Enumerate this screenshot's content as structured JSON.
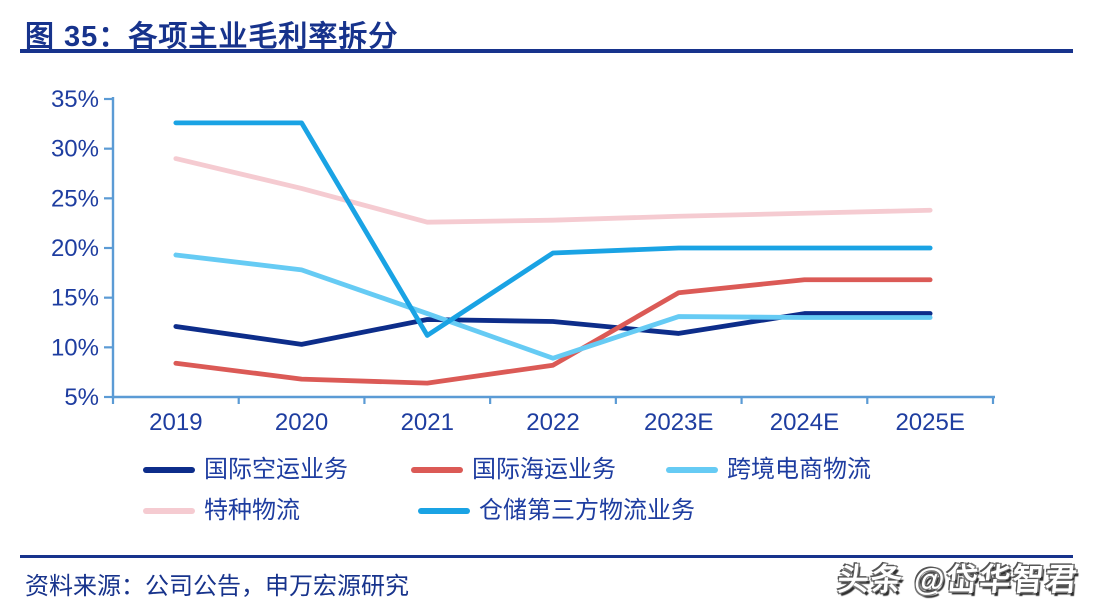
{
  "page": {
    "figure_label": "图 35：各项主业毛利率拆分",
    "source_text": "资料来源：公司公告，申万宏源研究",
    "watermark_text": "头条 @岱华智君"
  },
  "colors": {
    "accent": "#17338c",
    "axis_line": "#5b9bd5",
    "tick_label": "#1e3da0"
  },
  "chart_data": {
    "type": "line",
    "title": "各项主业毛利率拆分",
    "categories": [
      "2019",
      "2020",
      "2021",
      "2022",
      "2023E",
      "2024E",
      "2025E"
    ],
    "series": [
      {
        "id": "intl-air-freight",
        "name": "国际空运业务",
        "color": "#0d2d8a",
        "values": [
          12.1,
          10.3,
          12.8,
          12.6,
          11.4,
          13.4,
          13.4
        ]
      },
      {
        "id": "intl-sea-freight",
        "name": "国际海运业务",
        "color": "#db5a56",
        "values": [
          8.4,
          6.8,
          6.4,
          8.2,
          15.5,
          16.8,
          16.8
        ]
      },
      {
        "id": "crossborder-ecommerce",
        "name": "跨境电商物流",
        "color": "#66cbf4",
        "values": [
          19.3,
          17.8,
          13.4,
          8.9,
          13.1,
          13.0,
          13.0
        ]
      },
      {
        "id": "special-logistics",
        "name": "特种物流",
        "color": "#f5cbd1",
        "values": [
          29.0,
          26.0,
          22.6,
          22.8,
          23.2,
          23.5,
          23.8
        ]
      },
      {
        "id": "warehouse-3pl",
        "name": "仓储第三方物流业务",
        "color": "#1aa3e4",
        "values": [
          32.6,
          32.6,
          11.2,
          19.5,
          20.0,
          20.0,
          20.0
        ]
      }
    ],
    "ylim": [
      5,
      35
    ],
    "ytick_step": 5,
    "ytick_suffix": "%",
    "grid": false,
    "legend_position": "bottom"
  }
}
